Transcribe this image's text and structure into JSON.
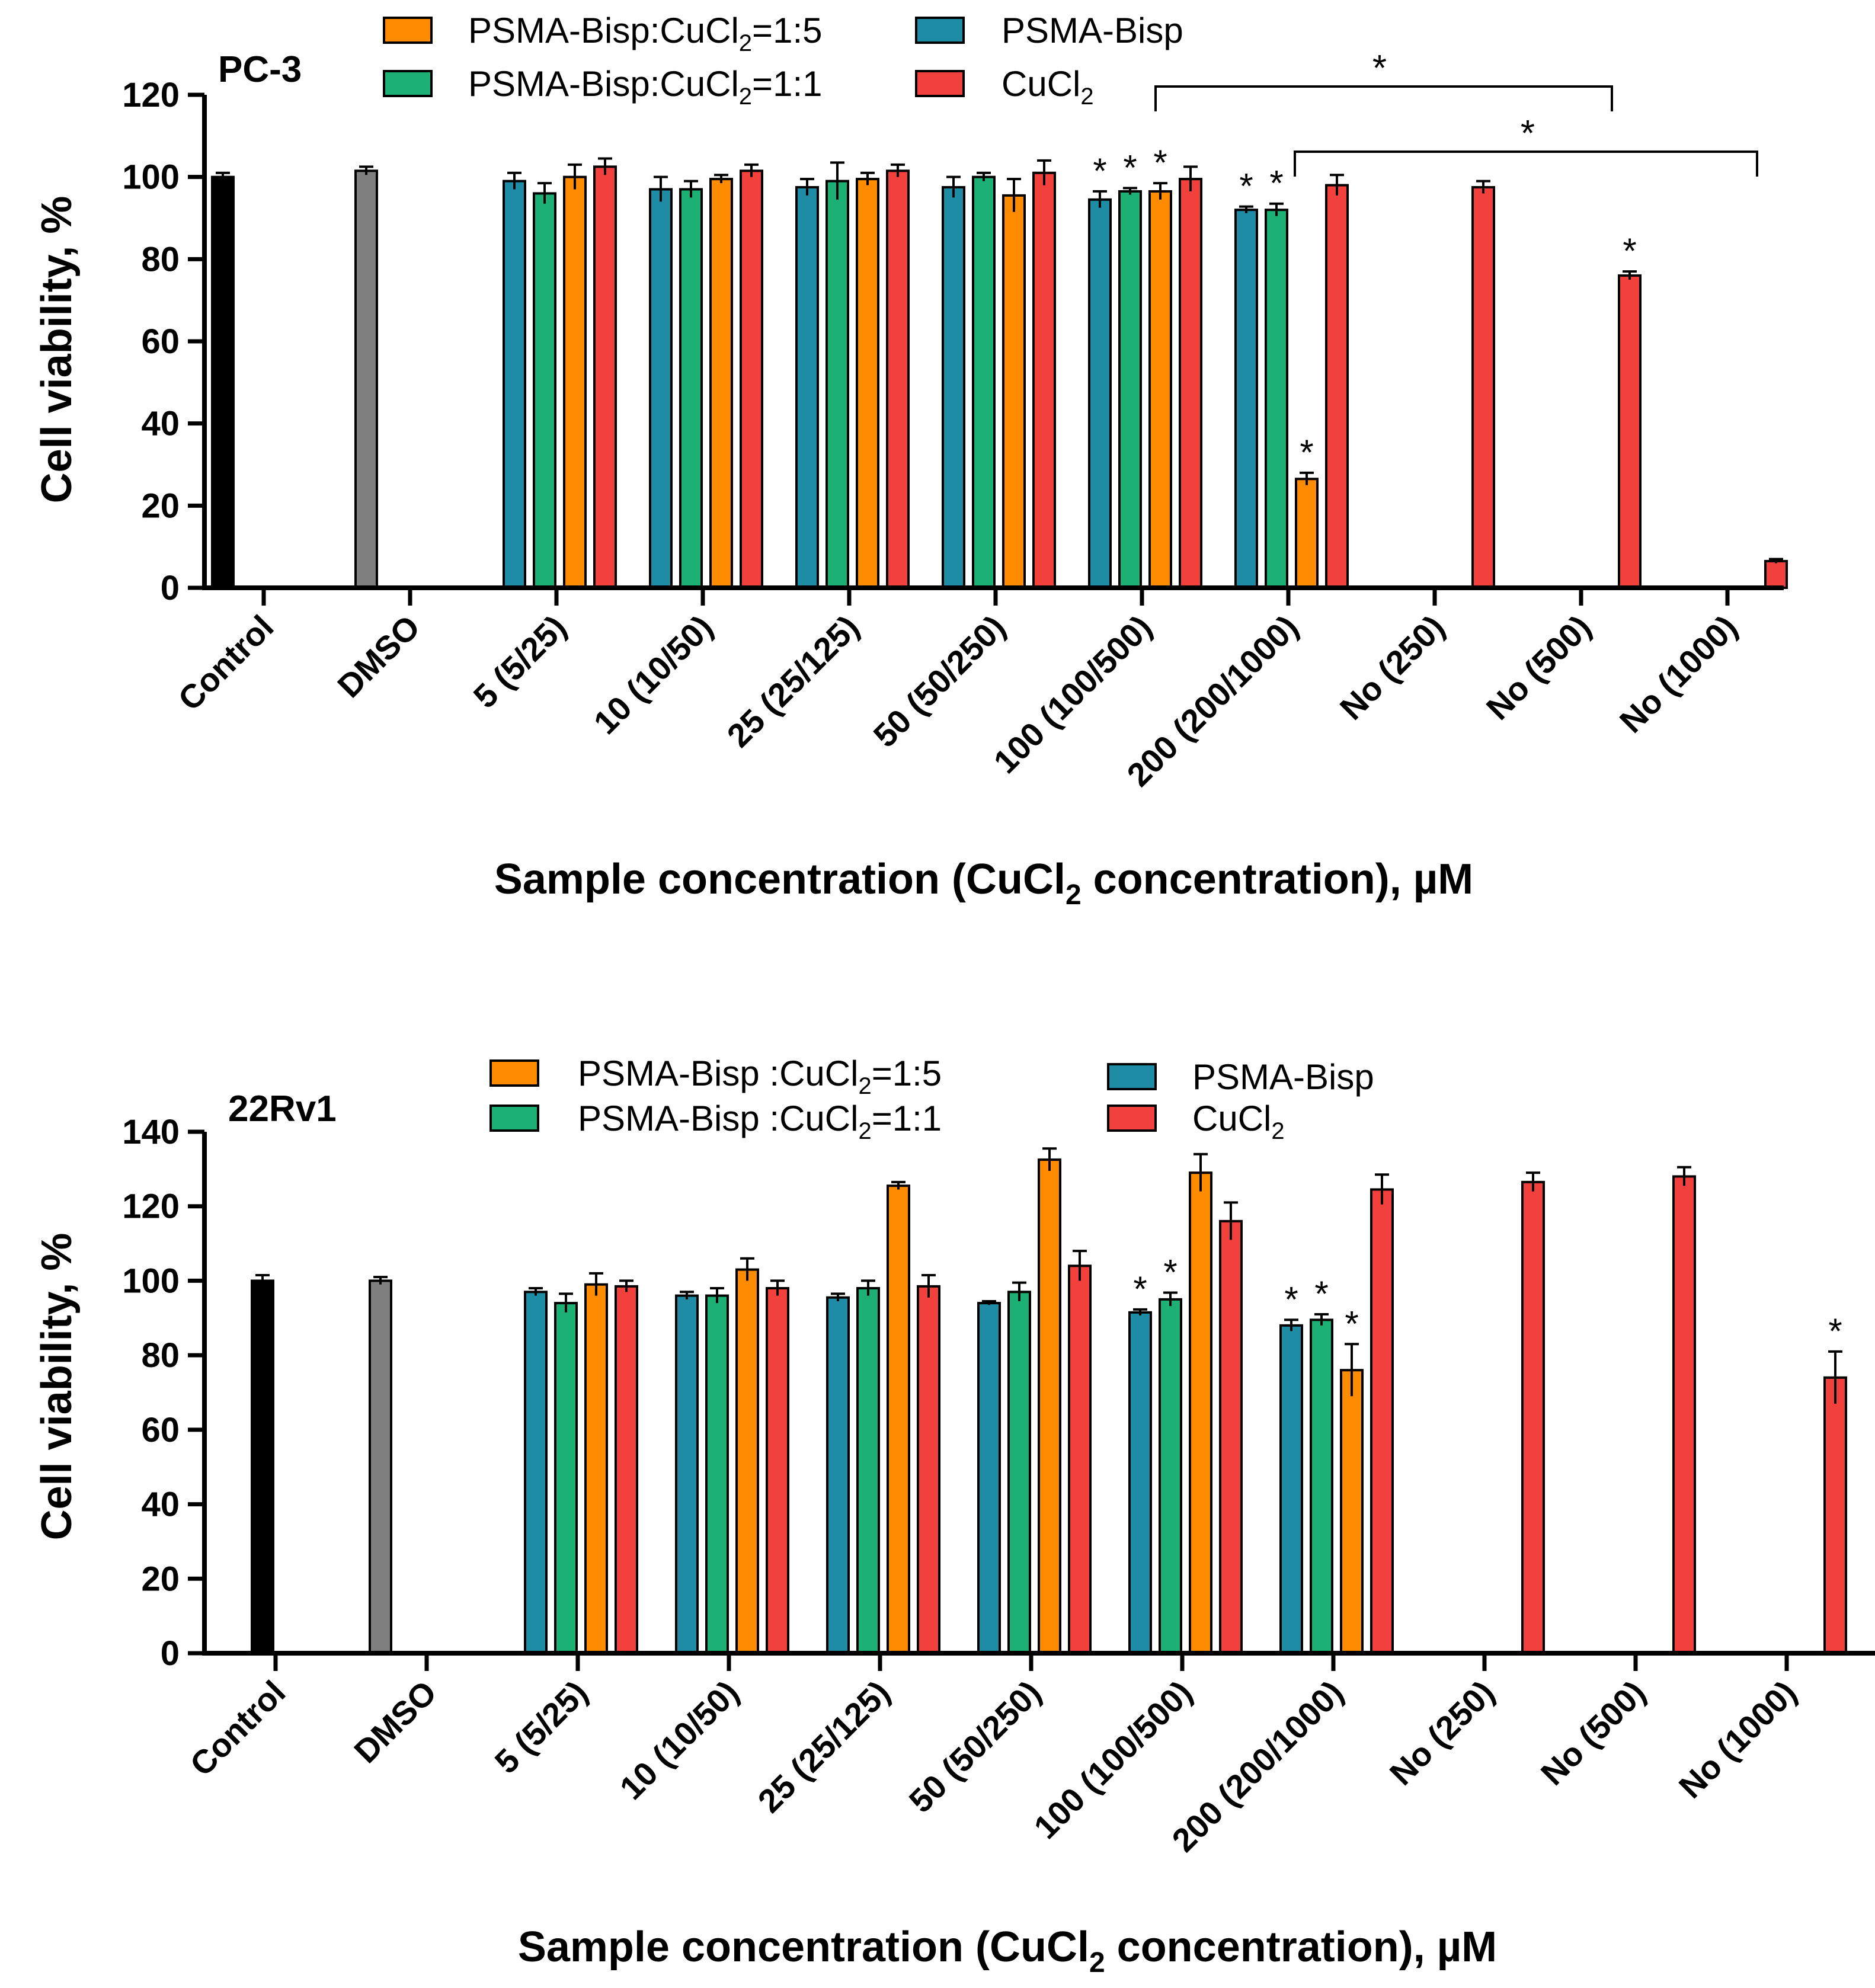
{
  "figure": {
    "ylabel": "Cell viability, %",
    "xlabel": {
      "pre": "Sample concentration (CuCl",
      "sub": "2",
      "post": " concentration), µM"
    }
  },
  "colors": {
    "PSMA-Bisp": "#1F8CA6",
    "1:1": "#1DB075",
    "1:5": "#FF8C00",
    "CuCl2": "#F2413D",
    "Control": "#000000",
    "DMSO": "#7F7F7F"
  },
  "panels": [
    {
      "id": "pc3",
      "title": "PC-3",
      "legend": [
        {
          "key": "1:5",
          "pre": "PSMA-Bisp:CuCl",
          "sub": "2",
          "post": "=1:5"
        },
        {
          "key": "1:1",
          "pre": "PSMA-Bisp:CuCl",
          "sub": "2",
          "post": "=1:1"
        },
        {
          "key": "PSMA-Bisp",
          "pre": "PSMA-Bisp",
          "sub": "",
          "post": ""
        },
        {
          "key": "CuCl2",
          "pre": "CuCl",
          "sub": "2",
          "post": ""
        }
      ],
      "brackets": [
        {
          "label": "*"
        },
        {
          "label": "*"
        }
      ]
    },
    {
      "id": "rv1",
      "title": "22Rv1",
      "legend": [
        {
          "key": "1:5",
          "pre": "PSMA-Bisp :CuCl",
          "sub": "2",
          "post": "=1:5"
        },
        {
          "key": "1:1",
          "pre": "PSMA-Bisp :CuCl",
          "sub": "2",
          "post": "=1:1"
        },
        {
          "key": "PSMA-Bisp",
          "pre": "PSMA-Bisp",
          "sub": "",
          "post": ""
        },
        {
          "key": "CuCl2",
          "pre": "CuCl",
          "sub": "2",
          "post": ""
        }
      ],
      "brackets": []
    }
  ],
  "chart_data": [
    {
      "type": "bar",
      "title": "PC-3",
      "ylabel": "Cell viability, %",
      "xlabel": "Sample concentration (CuCl2 concentration), µM",
      "ylim": [
        0,
        120
      ],
      "yticks": [
        0,
        20,
        40,
        60,
        80,
        100,
        120
      ],
      "categories": [
        "Control",
        "DMSO",
        "5 (5/25)",
        "10 (10/50)",
        "25 (25/125)",
        "50 (50/250)",
        "100 (100/500)",
        "200 (200/1000)",
        "No (250)",
        "No (500)",
        "No (1000)"
      ],
      "bars": [
        {
          "cat": 0,
          "series": "Control",
          "value": 100,
          "err": 1
        },
        {
          "cat": 1,
          "series": "DMSO",
          "value": 101.5,
          "err": 1
        },
        {
          "cat": 2,
          "series": "PSMA-Bisp",
          "value": 99,
          "err": 2
        },
        {
          "cat": 2,
          "series": "1:1",
          "value": 96,
          "err": 2.5
        },
        {
          "cat": 2,
          "series": "1:5",
          "value": 100,
          "err": 3
        },
        {
          "cat": 2,
          "series": "CuCl2",
          "value": 102.5,
          "err": 2
        },
        {
          "cat": 3,
          "series": "PSMA-Bisp",
          "value": 97,
          "err": 3
        },
        {
          "cat": 3,
          "series": "1:1",
          "value": 97,
          "err": 2
        },
        {
          "cat": 3,
          "series": "1:5",
          "value": 99.5,
          "err": 1
        },
        {
          "cat": 3,
          "series": "CuCl2",
          "value": 101.5,
          "err": 1.5
        },
        {
          "cat": 4,
          "series": "PSMA-Bisp",
          "value": 97.5,
          "err": 2
        },
        {
          "cat": 4,
          "series": "1:1",
          "value": 99,
          "err": 4.5
        },
        {
          "cat": 4,
          "series": "1:5",
          "value": 99.5,
          "err": 1.5
        },
        {
          "cat": 4,
          "series": "CuCl2",
          "value": 101.5,
          "err": 1.5
        },
        {
          "cat": 5,
          "series": "PSMA-Bisp",
          "value": 97.5,
          "err": 2.5
        },
        {
          "cat": 5,
          "series": "1:1",
          "value": 100,
          "err": 1
        },
        {
          "cat": 5,
          "series": "1:5",
          "value": 95.5,
          "err": 4
        },
        {
          "cat": 5,
          "series": "CuCl2",
          "value": 101,
          "err": 3
        },
        {
          "cat": 6,
          "series": "PSMA-Bisp",
          "value": 94.5,
          "err": 2,
          "star": true
        },
        {
          "cat": 6,
          "series": "1:1",
          "value": 96.5,
          "err": 0.8,
          "star": true
        },
        {
          "cat": 6,
          "series": "1:5",
          "value": 96.5,
          "err": 2,
          "star": true
        },
        {
          "cat": 6,
          "series": "CuCl2",
          "value": 99.5,
          "err": 3
        },
        {
          "cat": 7,
          "series": "PSMA-Bisp",
          "value": 92,
          "err": 0.8,
          "star": true
        },
        {
          "cat": 7,
          "series": "1:1",
          "value": 92,
          "err": 1.5,
          "star": true
        },
        {
          "cat": 7,
          "series": "1:5",
          "value": 26.5,
          "err": 1.5,
          "star": true
        },
        {
          "cat": 7,
          "series": "CuCl2",
          "value": 98,
          "err": 2.5
        },
        {
          "cat": 8,
          "series": "CuCl2",
          "value": 97.5,
          "err": 1.5
        },
        {
          "cat": 9,
          "series": "CuCl2",
          "value": 76,
          "err": 1,
          "star": true
        },
        {
          "cat": 10,
          "series": "CuCl2",
          "value": 6.5,
          "err": 0.5
        }
      ]
    },
    {
      "type": "bar",
      "title": "22Rv1",
      "ylabel": "Cell viability, %",
      "xlabel": "Sample concentration (CuCl2 concentration), µM",
      "ylim": [
        0,
        140
      ],
      "yticks": [
        0,
        20,
        40,
        60,
        80,
        100,
        120,
        140
      ],
      "categories": [
        "Control",
        "DMSO",
        "5 (5/25)",
        "10 (10/50)",
        "25 (25/125)",
        "50 (50/250)",
        "100 (100/500)",
        "200 (200/1000)",
        "No (250)",
        "No (500)",
        "No (1000)"
      ],
      "bars": [
        {
          "cat": 0,
          "series": "Control",
          "value": 100,
          "err": 1.5
        },
        {
          "cat": 1,
          "series": "DMSO",
          "value": 100,
          "err": 1
        },
        {
          "cat": 2,
          "series": "PSMA-Bisp",
          "value": 97,
          "err": 1
        },
        {
          "cat": 2,
          "series": "1:1",
          "value": 94,
          "err": 2.5
        },
        {
          "cat": 2,
          "series": "1:5",
          "value": 99,
          "err": 3
        },
        {
          "cat": 2,
          "series": "CuCl2",
          "value": 98.5,
          "err": 1.5
        },
        {
          "cat": 3,
          "series": "PSMA-Bisp",
          "value": 96,
          "err": 1
        },
        {
          "cat": 3,
          "series": "1:1",
          "value": 96,
          "err": 2
        },
        {
          "cat": 3,
          "series": "1:5",
          "value": 103,
          "err": 3
        },
        {
          "cat": 3,
          "series": "CuCl2",
          "value": 98,
          "err": 2
        },
        {
          "cat": 4,
          "series": "PSMA-Bisp",
          "value": 95.5,
          "err": 1
        },
        {
          "cat": 4,
          "series": "1:1",
          "value": 98,
          "err": 2
        },
        {
          "cat": 4,
          "series": "1:5",
          "value": 125.5,
          "err": 1
        },
        {
          "cat": 4,
          "series": "CuCl2",
          "value": 98.5,
          "err": 3
        },
        {
          "cat": 5,
          "series": "PSMA-Bisp",
          "value": 94,
          "err": 0.5
        },
        {
          "cat": 5,
          "series": "1:1",
          "value": 97,
          "err": 2.5
        },
        {
          "cat": 5,
          "series": "1:5",
          "value": 132.5,
          "err": 3
        },
        {
          "cat": 5,
          "series": "CuCl2",
          "value": 104,
          "err": 4
        },
        {
          "cat": 6,
          "series": "PSMA-Bisp",
          "value": 91.5,
          "err": 0.8,
          "star": true
        },
        {
          "cat": 6,
          "series": "1:1",
          "value": 95,
          "err": 1.8,
          "star": true
        },
        {
          "cat": 6,
          "series": "1:5",
          "value": 129,
          "err": 5
        },
        {
          "cat": 6,
          "series": "CuCl2",
          "value": 116,
          "err": 5
        },
        {
          "cat": 7,
          "series": "PSMA-Bisp",
          "value": 88,
          "err": 1.5,
          "star": true
        },
        {
          "cat": 7,
          "series": "1:1",
          "value": 89.5,
          "err": 1.5,
          "star": true
        },
        {
          "cat": 7,
          "series": "1:5",
          "value": 76,
          "err": 7,
          "star": true
        },
        {
          "cat": 7,
          "series": "CuCl2",
          "value": 124.5,
          "err": 4
        },
        {
          "cat": 8,
          "series": "CuCl2",
          "value": 126.5,
          "err": 2.5
        },
        {
          "cat": 9,
          "series": "CuCl2",
          "value": 128,
          "err": 2.5
        },
        {
          "cat": 10,
          "series": "CuCl2",
          "value": 74,
          "err": 7,
          "star": true
        }
      ]
    }
  ]
}
